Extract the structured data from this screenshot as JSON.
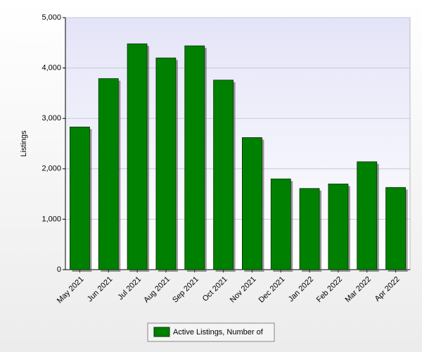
{
  "chart_data": {
    "type": "bar",
    "y_label": "Listings",
    "categories": [
      "May 2021",
      "Jun 2021",
      "Jul 2021",
      "Aug 2021",
      "Sep 2021",
      "Oct 2021",
      "Nov 2021",
      "Dec 2021",
      "Jan 2022",
      "Feb 2022",
      "Mar 2022",
      "Apr 2022"
    ],
    "series": [
      {
        "name": "Active Listings, Number of",
        "color": "#008000",
        "values": [
          2830,
          3790,
          4480,
          4200,
          4440,
          3760,
          2620,
          1800,
          1610,
          1700,
          2140,
          1630
        ]
      }
    ],
    "ylim": [
      0,
      5000
    ],
    "yticks": [
      0,
      {
        "value": 1000,
        "label": "1,000"
      },
      {
        "value": 2000,
        "label": "2,000"
      },
      {
        "value": 3000,
        "label": "3,000"
      },
      {
        "value": 4000,
        "label": "4,000"
      },
      {
        "value": 5000,
        "label": "5,000"
      }
    ],
    "grid": true,
    "legend": "bottom"
  }
}
